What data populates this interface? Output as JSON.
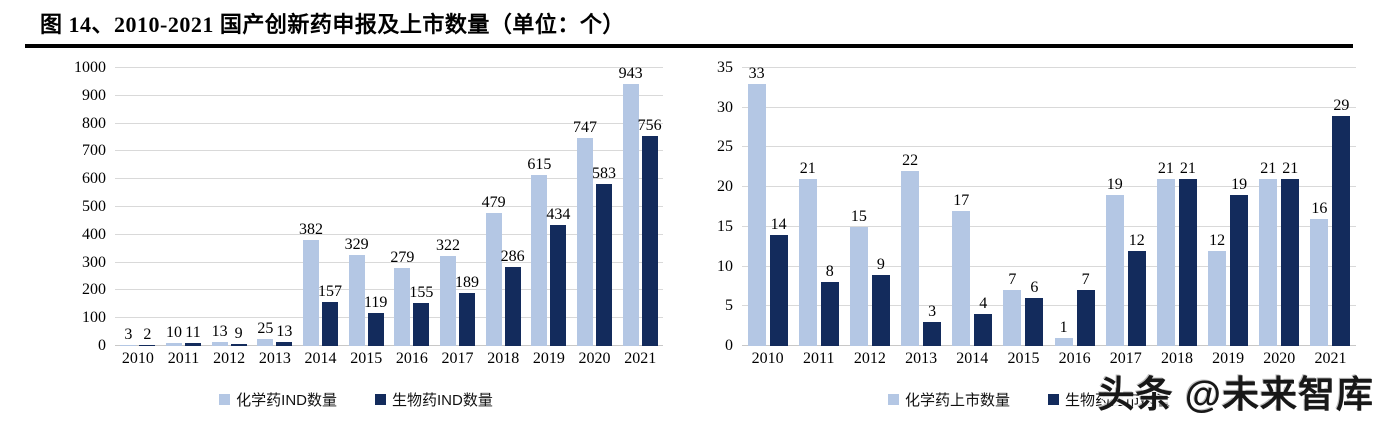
{
  "figure": {
    "title": "图 14、2010-2021 国产创新药申报及上市数量（单位：个）"
  },
  "watermark": {
    "text": "头条 @未来智库"
  },
  "colors": {
    "light_blue": "#B4C7E4",
    "dark_blue": "#132B5C",
    "gridline": "#D9D9D9",
    "title_text": "#000000"
  },
  "chart_data": [
    {
      "id": "ind-chart",
      "type": "bar",
      "title": "",
      "categories": [
        "2010",
        "2011",
        "2012",
        "2013",
        "2014",
        "2015",
        "2016",
        "2017",
        "2018",
        "2019",
        "2020",
        "2021"
      ],
      "series": [
        {
          "name": "化学药IND数量",
          "color": "#B4C7E4",
          "values": [
            3,
            10,
            13,
            25,
            382,
            329,
            279,
            322,
            479,
            615,
            747,
            943
          ]
        },
        {
          "name": "生物药IND数量",
          "color": "#132B5C",
          "values": [
            2,
            11,
            9,
            13,
            157,
            119,
            155,
            189,
            286,
            434,
            583,
            756
          ]
        }
      ],
      "xlabel": "",
      "ylabel": "",
      "ylim": [
        0,
        1000
      ],
      "yticks": [
        0,
        100,
        200,
        300,
        400,
        500,
        600,
        700,
        800,
        900,
        1000
      ],
      "grid": true,
      "data_labels": true,
      "legend_position": "bottom"
    },
    {
      "id": "listing-chart",
      "type": "bar",
      "title": "",
      "categories": [
        "2010",
        "2011",
        "2012",
        "2013",
        "2014",
        "2015",
        "2016",
        "2017",
        "2018",
        "2019",
        "2020",
        "2021"
      ],
      "series": [
        {
          "name": "化学药上市数量",
          "color": "#B4C7E4",
          "values": [
            33,
            21,
            15,
            22,
            17,
            7,
            1,
            19,
            21,
            12,
            21,
            16
          ]
        },
        {
          "name": "生物药上市数量",
          "color": "#132B5C",
          "values": [
            14,
            8,
            9,
            3,
            4,
            6,
            7,
            12,
            21,
            19,
            21,
            29
          ]
        }
      ],
      "xlabel": "",
      "ylabel": "",
      "ylim": [
        0,
        35
      ],
      "yticks": [
        0,
        5,
        10,
        15,
        20,
        25,
        30,
        35
      ],
      "grid": true,
      "data_labels": true,
      "legend_position": "bottom"
    }
  ]
}
